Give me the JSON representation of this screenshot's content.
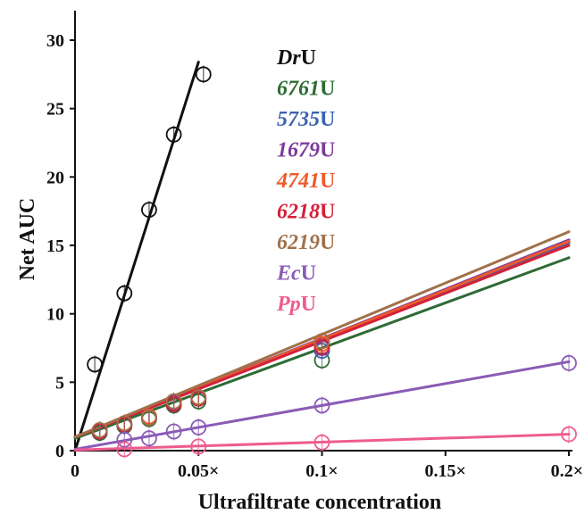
{
  "chart_data": {
    "type": "scatter",
    "title": "",
    "xlabel": "Ultrafiltrate concentration",
    "ylabel": "Net AUC",
    "xlim": [
      0,
      0.2
    ],
    "ylim": [
      0,
      30
    ],
    "x_ticks": [
      {
        "value": 0,
        "label": "0"
      },
      {
        "value": 0.05,
        "label": "0.05×"
      },
      {
        "value": 0.1,
        "label": "0.1×"
      },
      {
        "value": 0.15,
        "label": "0.15×"
      },
      {
        "value": 0.2,
        "label": "0.2×"
      }
    ],
    "y_ticks": [
      {
        "value": 0,
        "label": "0"
      },
      {
        "value": 5,
        "label": "5"
      },
      {
        "value": 10,
        "label": "10"
      },
      {
        "value": 15,
        "label": "15"
      },
      {
        "value": 20,
        "label": "20"
      },
      {
        "value": 25,
        "label": "25"
      },
      {
        "value": 30,
        "label": "30"
      }
    ],
    "grid": false,
    "legend_position": "top-right",
    "series": [
      {
        "name_italic": "Dr",
        "name_suffix": "U",
        "color": "#111111",
        "points": [
          [
            0.008,
            6.3
          ],
          [
            0.02,
            11.5
          ],
          [
            0.03,
            17.6
          ],
          [
            0.04,
            23.1
          ],
          [
            0.052,
            27.5
          ]
        ],
        "fit": [
          [
            0,
            0
          ],
          [
            0.05,
            28.4
          ]
        ]
      },
      {
        "name_italic": "6761",
        "name_suffix": "U",
        "color": "#2e6b34",
        "points": [
          [
            0.01,
            1.3
          ],
          [
            0.02,
            1.8
          ],
          [
            0.03,
            2.3
          ],
          [
            0.04,
            3.3
          ],
          [
            0.05,
            3.6
          ],
          [
            0.1,
            6.6
          ]
        ],
        "fit": [
          [
            0,
            0.9
          ],
          [
            0.2,
            14.1
          ]
        ]
      },
      {
        "name_italic": "5735",
        "name_suffix": "U",
        "color": "#3d63b0",
        "points": [
          [
            0.01,
            1.4
          ],
          [
            0.02,
            1.9
          ],
          [
            0.03,
            2.4
          ],
          [
            0.04,
            3.5
          ],
          [
            0.05,
            3.8
          ],
          [
            0.1,
            7.3
          ]
        ],
        "fit": [
          [
            0,
            1.0
          ],
          [
            0.2,
            15.2
          ]
        ]
      },
      {
        "name_italic": "1679",
        "name_suffix": "U",
        "color": "#7b3a9c",
        "points": [
          [
            0.01,
            1.4
          ],
          [
            0.02,
            1.9
          ],
          [
            0.03,
            2.4
          ],
          [
            0.04,
            3.5
          ],
          [
            0.05,
            3.8
          ],
          [
            0.1,
            7.5
          ]
        ],
        "fit": [
          [
            0,
            1.0
          ],
          [
            0.2,
            15.4
          ]
        ]
      },
      {
        "name_italic": "4741",
        "name_suffix": "U",
        "color": "#ee5a2a",
        "points": [
          [
            0.01,
            1.5
          ],
          [
            0.02,
            2.0
          ],
          [
            0.03,
            2.5
          ],
          [
            0.04,
            3.6
          ],
          [
            0.05,
            3.9
          ],
          [
            0.1,
            7.8
          ]
        ],
        "fit": [
          [
            0,
            1.0
          ],
          [
            0.2,
            15.3
          ]
        ]
      },
      {
        "name_italic": "6218",
        "name_suffix": "U",
        "color": "#d4203a",
        "points": [
          [
            0.01,
            1.4
          ],
          [
            0.02,
            1.9
          ],
          [
            0.03,
            2.4
          ],
          [
            0.04,
            3.4
          ],
          [
            0.05,
            3.8
          ],
          [
            0.1,
            7.6
          ]
        ],
        "fit": [
          [
            0,
            1.0
          ],
          [
            0.2,
            15.0
          ]
        ]
      },
      {
        "name_italic": "6219",
        "name_suffix": "U",
        "color": "#a0714a",
        "points": [
          [
            0.01,
            1.5
          ],
          [
            0.02,
            2.0
          ],
          [
            0.03,
            2.4
          ],
          [
            0.04,
            3.6
          ],
          [
            0.05,
            3.9
          ],
          [
            0.1,
            8.0
          ]
        ],
        "fit": [
          [
            0,
            1.0
          ],
          [
            0.2,
            16.0
          ]
        ]
      },
      {
        "name_italic": "Ec",
        "name_suffix": "U",
        "color": "#8a5bb5",
        "points": [
          [
            0.02,
            0.8
          ],
          [
            0.03,
            0.9
          ],
          [
            0.04,
            1.4
          ],
          [
            0.05,
            1.7
          ],
          [
            0.1,
            3.3
          ],
          [
            0.2,
            6.4
          ]
        ],
        "fit": [
          [
            0,
            0.1
          ],
          [
            0.2,
            6.5
          ]
        ]
      },
      {
        "name_italic": "Pp",
        "name_suffix": "U",
        "color": "#ee5c8e",
        "points": [
          [
            0.02,
            0.1
          ],
          [
            0.05,
            0.3
          ],
          [
            0.1,
            0.6
          ],
          [
            0.2,
            1.2
          ]
        ],
        "fit": [
          [
            0,
            0.05
          ],
          [
            0.2,
            1.2
          ]
        ]
      }
    ]
  }
}
